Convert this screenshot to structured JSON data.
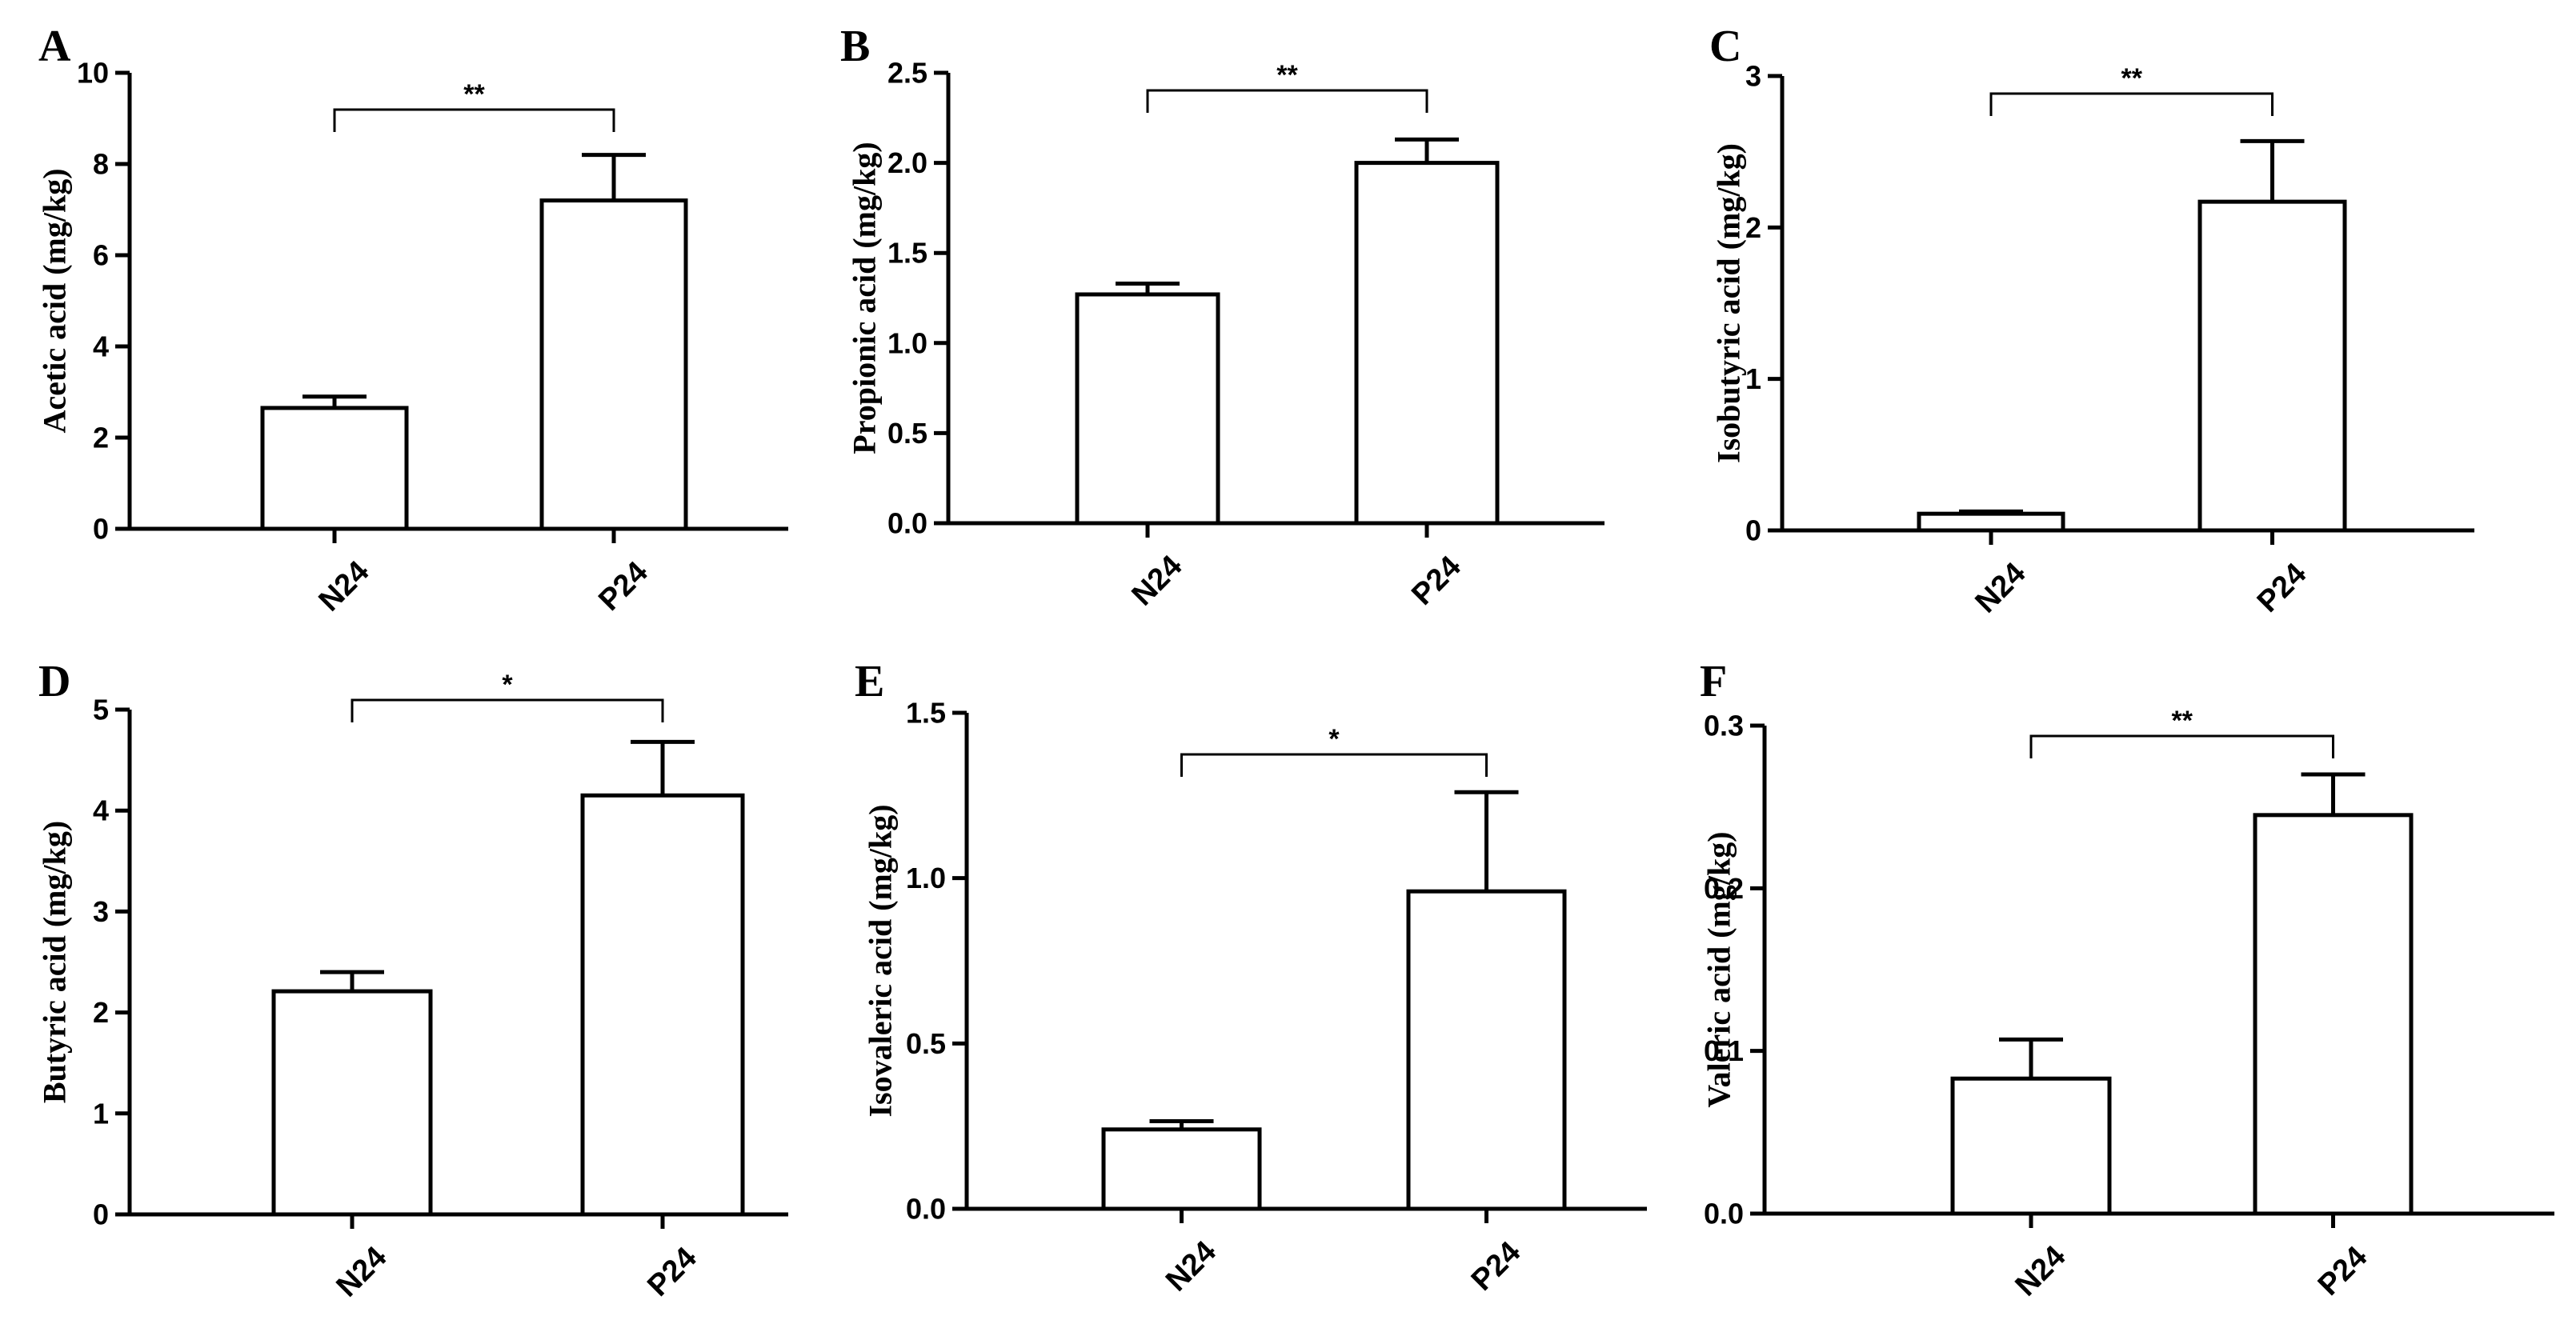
{
  "chart_data": [
    {
      "panel": "A",
      "type": "bar",
      "ylabel": "Acetic acid (mg/kg)",
      "categories": [
        "N24",
        "P24"
      ],
      "values": [
        2.65,
        7.2
      ],
      "errors": [
        0.25,
        1.0
      ],
      "ylim": [
        0,
        10
      ],
      "yticks": [
        "0",
        "2",
        "4",
        "6",
        "8",
        "10"
      ],
      "significance": "**"
    },
    {
      "panel": "B",
      "type": "bar",
      "ylabel": "Propionic acid (mg/kg)",
      "categories": [
        "N24",
        "P24"
      ],
      "values": [
        1.27,
        2.0
      ],
      "errors": [
        0.06,
        0.13
      ],
      "ylim": [
        0,
        2.5
      ],
      "yticks": [
        "0.0",
        "0.5",
        "1.0",
        "1.5",
        "2.0",
        "2.5"
      ],
      "significance": "**"
    },
    {
      "panel": "C",
      "type": "bar",
      "ylabel": "Isobutyric acid (mg/kg)",
      "categories": [
        "N24",
        "P24"
      ],
      "values": [
        0.11,
        2.17
      ],
      "errors": [
        0.015,
        0.4
      ],
      "ylim": [
        0,
        3
      ],
      "yticks": [
        "0",
        "1",
        "2",
        "3"
      ],
      "significance": "**"
    },
    {
      "panel": "D",
      "type": "bar",
      "ylabel": "Butyric acid (mg/kg)",
      "categories": [
        "N24",
        "P24"
      ],
      "values": [
        2.21,
        4.15
      ],
      "errors": [
        0.19,
        0.53
      ],
      "ylim": [
        0,
        5
      ],
      "yticks": [
        "0",
        "1",
        "2",
        "3",
        "4",
        "5"
      ],
      "significance": "*"
    },
    {
      "panel": "E",
      "type": "bar",
      "ylabel": "Isovaleric acid (mg/kg)",
      "categories": [
        "N24",
        "P24"
      ],
      "values": [
        0.24,
        0.96
      ],
      "errors": [
        0.025,
        0.3
      ],
      "ylim": [
        0,
        1.5
      ],
      "yticks": [
        "0.0",
        "0.5",
        "1.0",
        "1.5"
      ],
      "significance": "*"
    },
    {
      "panel": "F",
      "type": "bar",
      "ylabel": "Valeric acid (mg/kg)",
      "categories": [
        "N24",
        "P24"
      ],
      "values": [
        0.083,
        0.245
      ],
      "errors": [
        0.024,
        0.025
      ],
      "ylim": [
        0,
        0.3
      ],
      "yticks": [
        "0.0",
        "0.1",
        "0.2",
        "0.3"
      ],
      "significance": "**"
    }
  ]
}
